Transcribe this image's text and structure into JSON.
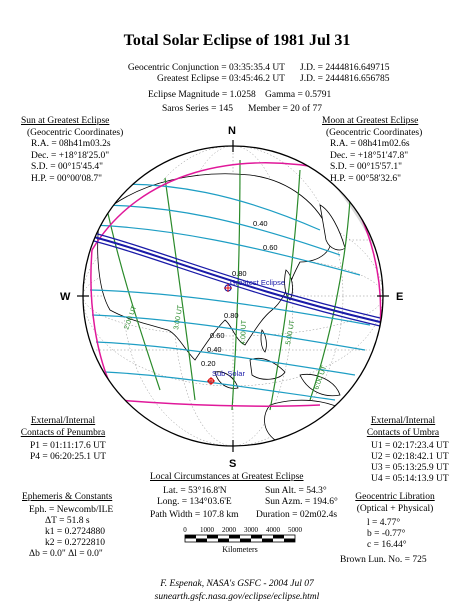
{
  "title": "Total Solar Eclipse of  1981 Jul 31",
  "header": {
    "rows": [
      {
        "label": "Geocentric Conjunction = 03:35:35.4 UT",
        "value": "J.D. = 2444816.649715"
      },
      {
        "label": "Greatest Eclipse = 03:45:46.2 UT",
        "value": "J.D. = 2444816.656785"
      }
    ],
    "magnitude": "Eclipse Magnitude = 1.0258",
    "gamma": "Gamma = 0.5791",
    "saros": "Saros Series = 145",
    "member": "Member = 20 of 77"
  },
  "sun": {
    "heading": "Sun at Greatest Eclipse",
    "sub": "(Geocentric Coordinates)",
    "ra": "R.A. = 08h41m03.2s",
    "dec": "Dec. = +18°18'25.0\"",
    "sd": "S.D. = 00°15'45.4\"",
    "hp": "H.P. = 00°00'08.7\""
  },
  "moon": {
    "heading": "Moon at Greatest Eclipse",
    "sub": "(Geocentric Coordinates)",
    "ra": "R.A. = 08h41m02.6s",
    "dec": "Dec. = +18°51'47.8\"",
    "sd": "S.D. = 00°15'57.1\"",
    "hp": "H.P. = 00°58'32.6\""
  },
  "penumbra": {
    "heading1": "External/Internal",
    "heading2": "Contacts of Penumbra",
    "p1": "P1 = 01:11:17.6 UT",
    "p4": "P4 = 06:20:25.1 UT"
  },
  "umbra": {
    "heading1": "External/Internal",
    "heading2": "Contacts of Umbra",
    "u1": "U1 = 02:17:23.4 UT",
    "u2": "U2 = 02:18:42.1 UT",
    "u3": "U3 = 05:13:25.9 UT",
    "u4": "U4 = 05:14:13.9 UT"
  },
  "local": {
    "heading": "Local Circumstances at Greatest Eclipse",
    "lat": "Lat. = 53°16.8'N",
    "long": "Long. = 134°03.6'E",
    "width": "Path Width = 107.8 km",
    "sunalt": "Sun Alt. = 54.3°",
    "sunazm": "Sun Azm. = 194.6°",
    "duration": "Duration = 02m02.4s"
  },
  "ephem": {
    "heading": "Ephemeris & Constants",
    "eph": "Eph. = Newcomb/ILE",
    "dt": "ΔT = 51.8 s",
    "k1": "k1 = 0.2724880",
    "k2": "k2 = 0.2722810",
    "db": "Δb = 0.0\"  Δl = 0.0\""
  },
  "libration": {
    "heading": "Geocentric Libration",
    "sub": "(Optical + Physical)",
    "l": "l = 4.77°",
    "b": "b = -0.77°",
    "c": "c = 16.44°",
    "brown": "Brown Lun. No. = 725"
  },
  "scale": {
    "ticks": [
      "0",
      "1000",
      "2000",
      "3000",
      "4000",
      "5000"
    ],
    "unit": "Kilometers"
  },
  "map": {
    "north": "N",
    "south": "S",
    "east": "E",
    "west": "W",
    "greatest_label": "Greatest Eclipse",
    "subsolar_label": "Sub Solar",
    "contour_labels": [
      "0.40",
      "0.60",
      "0.80",
      "0.80",
      "0.60",
      "0.40",
      "0.20"
    ],
    "time_labels": [
      "2:00 UT",
      "3:00 UT",
      "4:00 UT",
      "5:00 UT",
      "6:00 UT"
    ],
    "colors": {
      "ocean": "#ffffff",
      "land": "#ffffff",
      "night": "#d9d9d9",
      "penumbra": "#e0189a",
      "umbra": "#1a1aa8",
      "magnitude": "#1e9ec4",
      "hourly": "#2a8a2a",
      "subsolar": "#e01010"
    }
  },
  "credit": "F. Espenak, NASA's GSFC - 2004 Jul 07",
  "url": "sunearth.gsfc.nasa.gov/eclipse/eclipse.html"
}
